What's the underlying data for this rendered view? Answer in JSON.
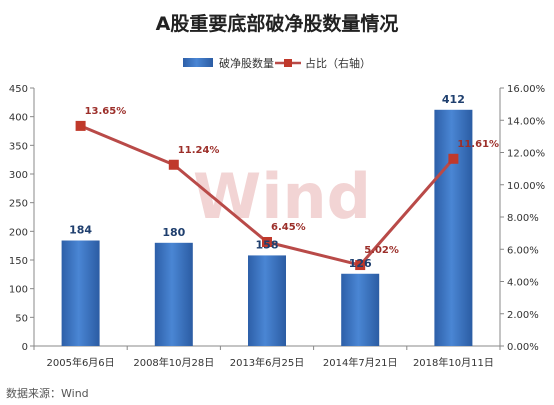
{
  "chart_data": {
    "type": "bar",
    "title": "A股重要底部破净股数量情况",
    "categories": [
      "2005年6月6日",
      "2008年10月28日",
      "2013年6月25日",
      "2014年7月21日",
      "2018年10月11日"
    ],
    "series": [
      {
        "name": "破净股数量",
        "type": "bar",
        "axis": "left",
        "values": [
          184,
          180,
          158,
          126,
          412
        ],
        "value_labels": [
          "184",
          "180",
          "158",
          "126",
          "412"
        ],
        "color": "#3a73c0"
      },
      {
        "name": "占比（右轴）",
        "type": "line",
        "axis": "right",
        "values": [
          13.65,
          11.24,
          6.45,
          5.02,
          11.61
        ],
        "value_labels": [
          "13.65%",
          "11.24%",
          "6.45%",
          "5.02%",
          "11.61%"
        ],
        "color": "#b94a48"
      }
    ],
    "left_axis": {
      "min": 0,
      "max": 450,
      "step": 50,
      "tick_labels": [
        "0",
        "50",
        "100",
        "150",
        "200",
        "250",
        "300",
        "350",
        "400",
        "450"
      ]
    },
    "right_axis": {
      "min": 0,
      "max": 16,
      "step": 2,
      "tick_labels": [
        "0.00%",
        "2.00%",
        "4.00%",
        "6.00%",
        "8.00%",
        "10.00%",
        "12.00%",
        "14.00%",
        "16.00%"
      ]
    },
    "legend_position": "top",
    "grid": false,
    "watermark": "Wind"
  },
  "source_note": "数据来源：Wind"
}
